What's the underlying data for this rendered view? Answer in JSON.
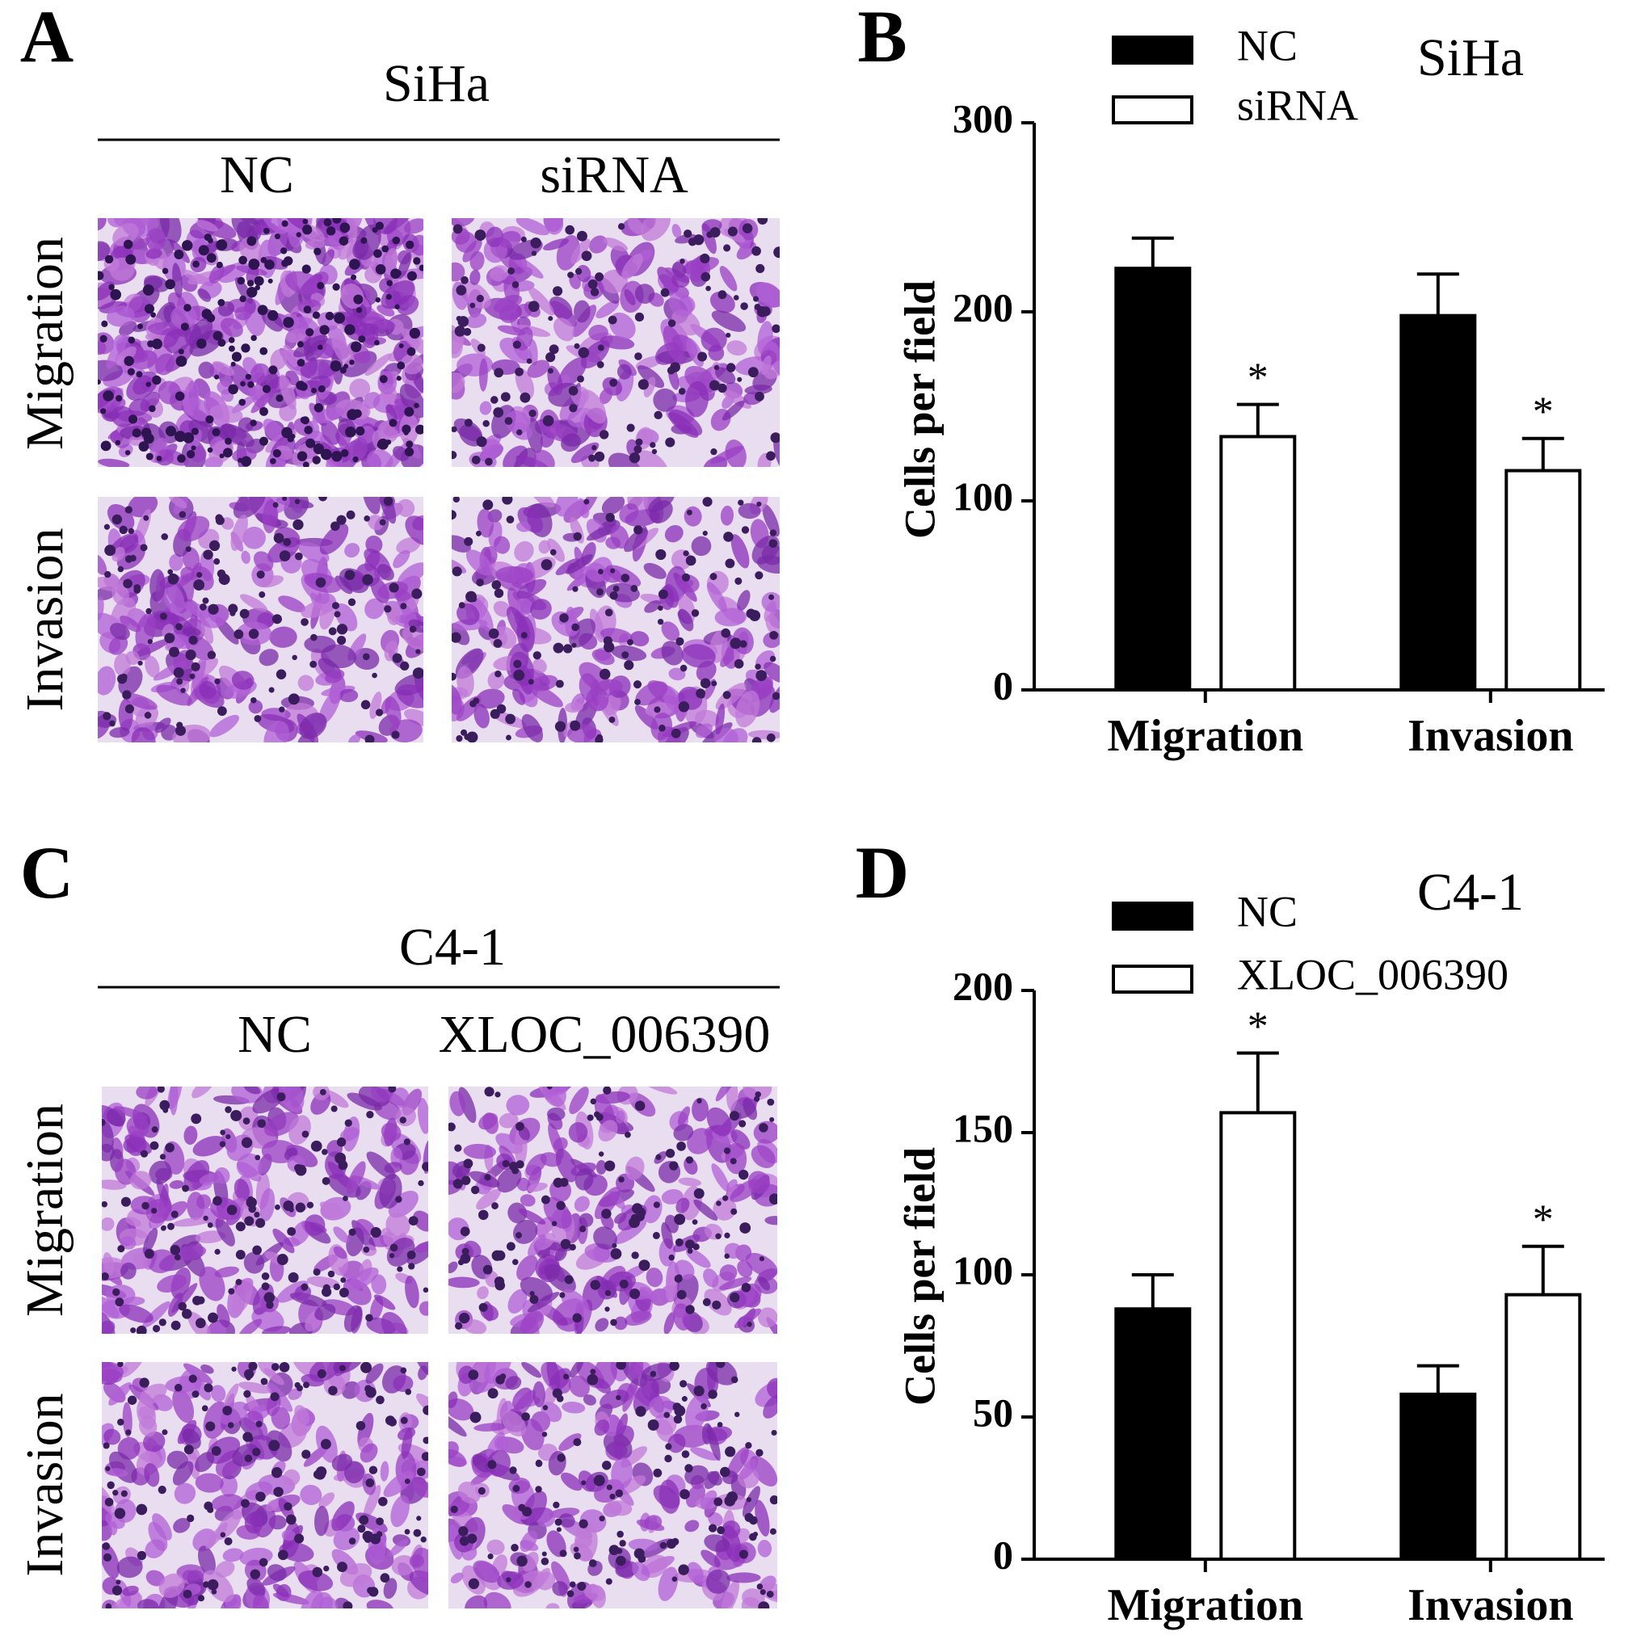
{
  "panels": [
    {
      "label": "A",
      "title": "SiHa",
      "columns": [
        "NC",
        "siRNA"
      ],
      "rows": [
        "Migration",
        "Invasion"
      ]
    },
    {
      "label": "C",
      "title": "C4-1",
      "columns": [
        "NC",
        "XLOC_006390"
      ],
      "rows": [
        "Migration",
        "Invasion"
      ]
    }
  ],
  "chart_data": [
    {
      "type": "bar",
      "label": "B",
      "title": "SiHa",
      "ylabel": "Cells per field",
      "categories": [
        "Migration",
        "Invasion"
      ],
      "series": [
        {
          "name": "NC",
          "color": "#000000",
          "values": [
            223,
            198
          ],
          "errors": [
            16,
            22
          ]
        },
        {
          "name": "siRNA",
          "color": "#ffffff",
          "values": [
            134,
            116
          ],
          "errors": [
            17,
            17
          ],
          "markers": [
            "*",
            "*"
          ]
        }
      ],
      "ylim": [
        0,
        300
      ],
      "yticks": [
        0,
        100,
        200,
        300
      ]
    },
    {
      "type": "bar",
      "label": "D",
      "title": "C4-1",
      "ylabel": "Cells per field",
      "categories": [
        "Migration",
        "Invasion"
      ],
      "series": [
        {
          "name": "NC",
          "color": "#000000",
          "values": [
            88,
            58
          ],
          "errors": [
            12,
            10
          ]
        },
        {
          "name": "XLOC_006390",
          "color": "#ffffff",
          "values": [
            157,
            93
          ],
          "errors": [
            21,
            17
          ],
          "markers": [
            "*",
            "*"
          ]
        }
      ],
      "ylim": [
        0,
        200
      ],
      "yticks": [
        0,
        50,
        100,
        150,
        200
      ]
    }
  ]
}
